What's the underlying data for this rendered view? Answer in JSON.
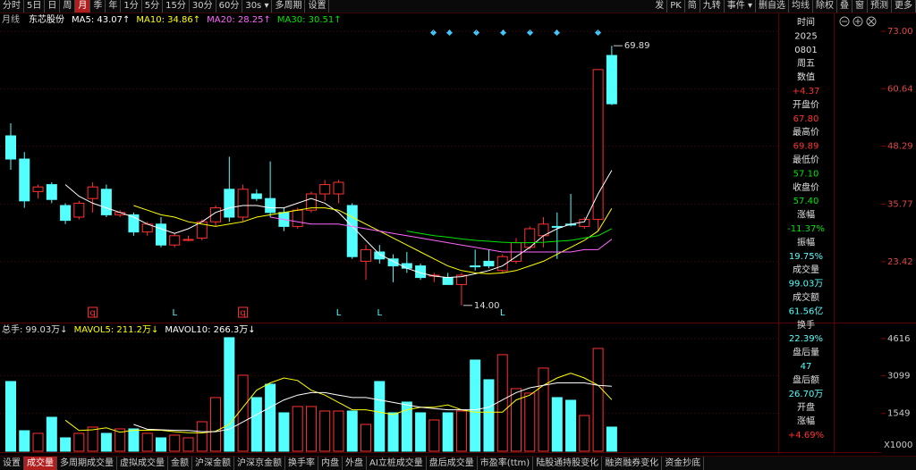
{
  "toolbar": {
    "left": [
      "分时",
      "5日",
      "日",
      "周",
      "月",
      "季",
      "年",
      "1分",
      "5分",
      "15分",
      "30分",
      "60分",
      "30s ▾",
      "多周期",
      "设置"
    ],
    "selected": 4,
    "right": [
      "发",
      "PK",
      "简",
      "九转",
      "事件 ▾",
      "删自选",
      "均线",
      "除权",
      "叠",
      "窗",
      "预测",
      "更多"
    ]
  },
  "chart_data": [
    {
      "type": "candlestick",
      "period": "月线",
      "name": "东芯股份",
      "open": [
        50.5,
        45.5,
        38.5,
        40,
        35.5,
        33,
        37,
        39,
        33.5,
        33.5,
        29.8,
        31.5,
        27,
        28,
        28.5,
        32,
        39,
        33,
        38,
        37,
        34,
        31,
        34.5,
        38,
        38,
        35.5,
        23.5,
        25.5,
        24,
        23,
        22.5,
        20.5,
        20,
        18.5,
        22.5,
        23.5,
        21.5,
        23.5,
        26.5,
        29,
        31,
        31.5,
        31,
        32.5,
        67.8
      ],
      "high": [
        53.2,
        47,
        40,
        40.5,
        36,
        36.5,
        40.5,
        40,
        34.5,
        34,
        32,
        33,
        29.5,
        29,
        32.5,
        35.5,
        46,
        40,
        39,
        45,
        35,
        35,
        38.5,
        41,
        41,
        36,
        27,
        27,
        25,
        25.5,
        23,
        21,
        21,
        21,
        26,
        26,
        25,
        28.5,
        31,
        33,
        34,
        38,
        33,
        64.76,
        69.89
      ],
      "low": [
        43.2,
        35,
        37,
        36,
        31.5,
        32.5,
        34,
        33,
        33,
        29,
        29,
        26.5,
        26.5,
        27.8,
        28,
        31,
        32,
        32,
        36.5,
        33,
        30,
        30.5,
        34,
        36.5,
        36,
        24,
        19.5,
        23,
        19,
        21,
        19.5,
        19,
        18.5,
        14,
        21.5,
        22,
        21,
        23,
        26,
        26.5,
        24,
        31,
        30.5,
        30,
        57.1
      ],
      "close": [
        45.5,
        36.5,
        39.5,
        36.8,
        32.3,
        36,
        39.5,
        33.5,
        34,
        29.8,
        31.5,
        27,
        29,
        28.2,
        32,
        35,
        33,
        39,
        37,
        34,
        31,
        34.5,
        38,
        40,
        40.5,
        24.5,
        26,
        24,
        22.5,
        22,
        20,
        20.5,
        18.5,
        20.5,
        22.4,
        22.5,
        24.5,
        27.5,
        30.5,
        31.5,
        30.9,
        31.3,
        32.5,
        64.76,
        57.4
      ],
      "up_color": "#ff3232",
      "down_color": "#54ffff",
      "series": [
        {
          "name": "MA5: 43.07↑",
          "color": "#ffffff",
          "values": [
            null,
            null,
            null,
            null,
            40,
            37.5,
            36,
            35,
            34,
            33,
            31.5,
            30.5,
            29.5,
            30.5,
            32,
            34,
            35,
            35.5,
            35.5,
            35,
            35,
            36,
            37,
            36,
            34,
            31,
            28,
            25,
            23.5,
            22,
            21,
            20.3,
            20,
            20.2,
            20.8,
            21.5,
            22.5,
            24.5,
            26.5,
            29,
            30.5,
            31.5,
            32,
            38,
            43.07
          ]
        },
        {
          "name": "MA10: 34.86↑",
          "color": "#ffff00",
          "values": [
            null,
            null,
            null,
            null,
            null,
            null,
            null,
            null,
            null,
            35.5,
            34.5,
            33.5,
            33,
            32,
            31.5,
            31,
            31.5,
            32,
            33,
            33.5,
            34,
            34.5,
            35,
            35,
            34.5,
            33,
            31.5,
            30,
            28.5,
            27,
            25.5,
            24,
            22.5,
            21.5,
            21,
            20.8,
            21,
            21.5,
            22.5,
            23.5,
            25,
            26.5,
            28,
            30,
            34.86
          ]
        },
        {
          "name": "MA20: 28.25↑",
          "color": "#ff66ff",
          "values": [
            null,
            null,
            null,
            null,
            null,
            null,
            null,
            null,
            null,
            null,
            null,
            null,
            null,
            null,
            null,
            null,
            null,
            null,
            null,
            33,
            32.5,
            32,
            31.5,
            31.5,
            31.5,
            31,
            30.5,
            30,
            29.5,
            29,
            28.5,
            28,
            27.5,
            27,
            26.5,
            26,
            25.5,
            25.5,
            25.5,
            25.5,
            25.5,
            25.5,
            26,
            26,
            28.25
          ]
        },
        {
          "name": "MA30: 30.51↑",
          "color": "#00e600",
          "values": [
            null,
            null,
            null,
            null,
            null,
            null,
            null,
            null,
            null,
            null,
            null,
            null,
            null,
            null,
            null,
            null,
            null,
            null,
            null,
            null,
            null,
            null,
            null,
            null,
            null,
            null,
            null,
            null,
            null,
            30,
            29.5,
            29,
            28.7,
            28.3,
            28,
            27.8,
            27.6,
            27.5,
            27.5,
            27.6,
            27.8,
            28,
            28.5,
            29,
            30.51
          ]
        }
      ],
      "ylim": [
        11.46,
        74.35
      ],
      "yticks": [
        {
          "value": 73,
          "label": "73.00"
        },
        60.64,
        48.29,
        35.77,
        23.42
      ],
      "grid": true,
      "max_label": "69.89",
      "min_label": "14.00",
      "signals": [
        {
          "index": 6,
          "label": "q",
          "color": "#ff3232"
        },
        {
          "index": 17,
          "label": "q",
          "color": "#ff3232"
        },
        {
          "index": 12,
          "label": "L",
          "color": "#54ffff"
        },
        {
          "index": 24,
          "label": "L",
          "color": "#54ffff"
        },
        {
          "index": 27,
          "label": "L",
          "color": "#54ffff"
        },
        {
          "index": 36,
          "label": "L",
          "color": "#54ffff"
        }
      ]
    },
    {
      "type": "bar",
      "title": "总手: 99.03万↓",
      "values": [
        2857,
        842,
        733,
        1392,
        550,
        733,
        990,
        733,
        916,
        916,
        733,
        550,
        660,
        550,
        1209,
        2198,
        4652,
        3114,
        2198,
        2747,
        1575,
        1832,
        1832,
        1648,
        1648,
        1648,
        1099,
        2857,
        1575,
        2015,
        1575,
        1282,
        1575,
        1648,
        3736,
        2930,
        3956,
        2564,
        2381,
        3407,
        2198,
        2088,
        1465,
        4212,
        990
      ],
      "series": [
        {
          "name": "MAVOL5: 211.2万↓",
          "color": "#ffff00",
          "values": [
            null,
            null,
            null,
            null,
            1270,
            850,
            880,
            960,
            780,
            860,
            860,
            860,
            800,
            760,
            750,
            820,
            1100,
            1800,
            2500,
            2800,
            3000,
            2900,
            2500,
            2300,
            2000,
            1700,
            1700,
            1600,
            1500,
            1700,
            1800,
            1800,
            1900,
            1700,
            1600,
            1600,
            1600,
            2100,
            2300,
            2700,
            3000,
            3200,
            3000,
            2700,
            2112
          ]
        },
        {
          "name": "MAVOL10: 266.3万↓",
          "color": "#ffffff",
          "values": [
            null,
            null,
            null,
            null,
            null,
            null,
            null,
            null,
            null,
            1100,
            900,
            880,
            860,
            850,
            800,
            800,
            900,
            1200,
            1500,
            1800,
            2100,
            2300,
            2400,
            2400,
            2300,
            2200,
            2200,
            2100,
            2000,
            1900,
            1800,
            1750,
            1700,
            1700,
            1700,
            1800,
            2100,
            2400,
            2600,
            2700,
            2800,
            2800,
            2800,
            2700,
            2663
          ]
        }
      ],
      "ylim": [
        0,
        5015
      ],
      "yticks": [
        4616,
        3099,
        1549
      ],
      "unit_label": "X1000",
      "grid": true
    }
  ],
  "info_panel": [
    {
      "text": "时间",
      "color": "#e0e0e0"
    },
    {
      "text": "2025",
      "color": "#e0e0e0"
    },
    {
      "text": "0801",
      "color": "#e0e0e0"
    },
    {
      "text": "周五",
      "color": "#e0e0e0"
    },
    {
      "text": "数值",
      "color": "#e0e0e0"
    },
    {
      "text": "+4.37",
      "color": "#ff3232"
    },
    {
      "text": "开盘价",
      "color": "#e0e0e0"
    },
    {
      "text": "67.80",
      "color": "#ff3232"
    },
    {
      "text": "最高价",
      "color": "#e0e0e0"
    },
    {
      "text": "69.89",
      "color": "#ff3232"
    },
    {
      "text": "最低价",
      "color": "#e0e0e0"
    },
    {
      "text": "57.10",
      "color": "#00e600"
    },
    {
      "text": "收盘价",
      "color": "#e0e0e0"
    },
    {
      "text": "57.40",
      "color": "#00e600"
    },
    {
      "text": "涨幅",
      "color": "#e0e0e0"
    },
    {
      "text": "-11.37%",
      "color": "#00e600"
    },
    {
      "text": "振幅",
      "color": "#e0e0e0"
    },
    {
      "text": "19.75%",
      "color": "#54ffff"
    },
    {
      "text": "成交量",
      "color": "#e0e0e0"
    },
    {
      "text": "99.03万",
      "color": "#54ffff"
    },
    {
      "text": "成交额",
      "color": "#e0e0e0"
    },
    {
      "text": "61.56亿",
      "color": "#54ffff"
    },
    {
      "text": "换手",
      "color": "#e0e0e0"
    },
    {
      "text": "22.39%",
      "color": "#54ffff"
    },
    {
      "text": "盘后量",
      "color": "#e0e0e0"
    },
    {
      "text": "47",
      "color": "#54ffff"
    },
    {
      "text": "盘后额",
      "color": "#e0e0e0"
    },
    {
      "text": "26.70万",
      "color": "#54ffff"
    },
    {
      "text": "开盘",
      "color": "#e0e0e0"
    },
    {
      "text": "涨幅",
      "color": "#e0e0e0"
    },
    {
      "text": "+4.69%",
      "color": "#ff3232"
    }
  ],
  "tabs": {
    "items": [
      "设置",
      "成交量",
      "多周期成交量",
      "虚拟成交量",
      "金额",
      "沪深金额",
      "沪深京金额",
      "换手率",
      "内盘",
      "外盘",
      "AI立桩成交量",
      "盘后成交量",
      "市盈率(ttm)",
      "陆股通持股变化",
      "融资融券变化",
      "资金抄底"
    ],
    "selected": 1
  }
}
